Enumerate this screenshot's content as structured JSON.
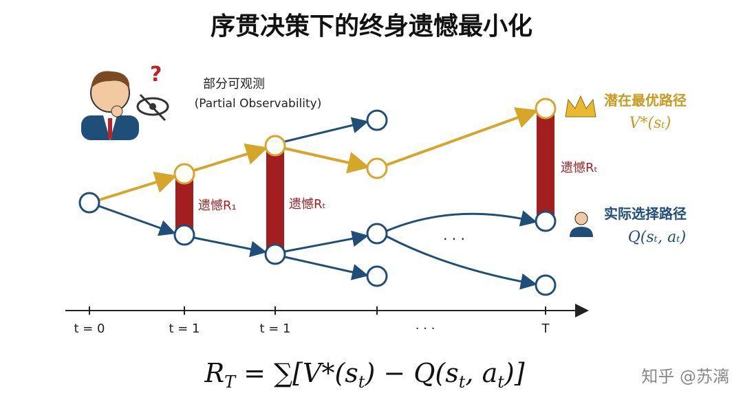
{
  "title": "序贯决策下的终身遗憾最小化",
  "observability": {
    "label": "部分可观测",
    "label_en": "(Partial Observability)"
  },
  "optimal_path": {
    "label": "潜在最优路径",
    "formula": "V*(sₜ)"
  },
  "actual_path": {
    "label": "实际选择路径",
    "formula": "Q(sₜ, aₜ)"
  },
  "regrets": [
    "遗憾R₁",
    "遗憾Rₜ",
    "遗憾Rₜ"
  ],
  "ellipsis": "· · ·",
  "timeline": [
    "t = 0",
    "t = 1",
    "t = 1",
    "· · ·",
    "T"
  ],
  "formula": [
    "R",
    "T",
    " = ∑[V*(s",
    "t",
    ") − Q(s",
    "t",
    ", a",
    "t",
    ")]"
  ],
  "watermark": "知乎 @苏漓"
}
